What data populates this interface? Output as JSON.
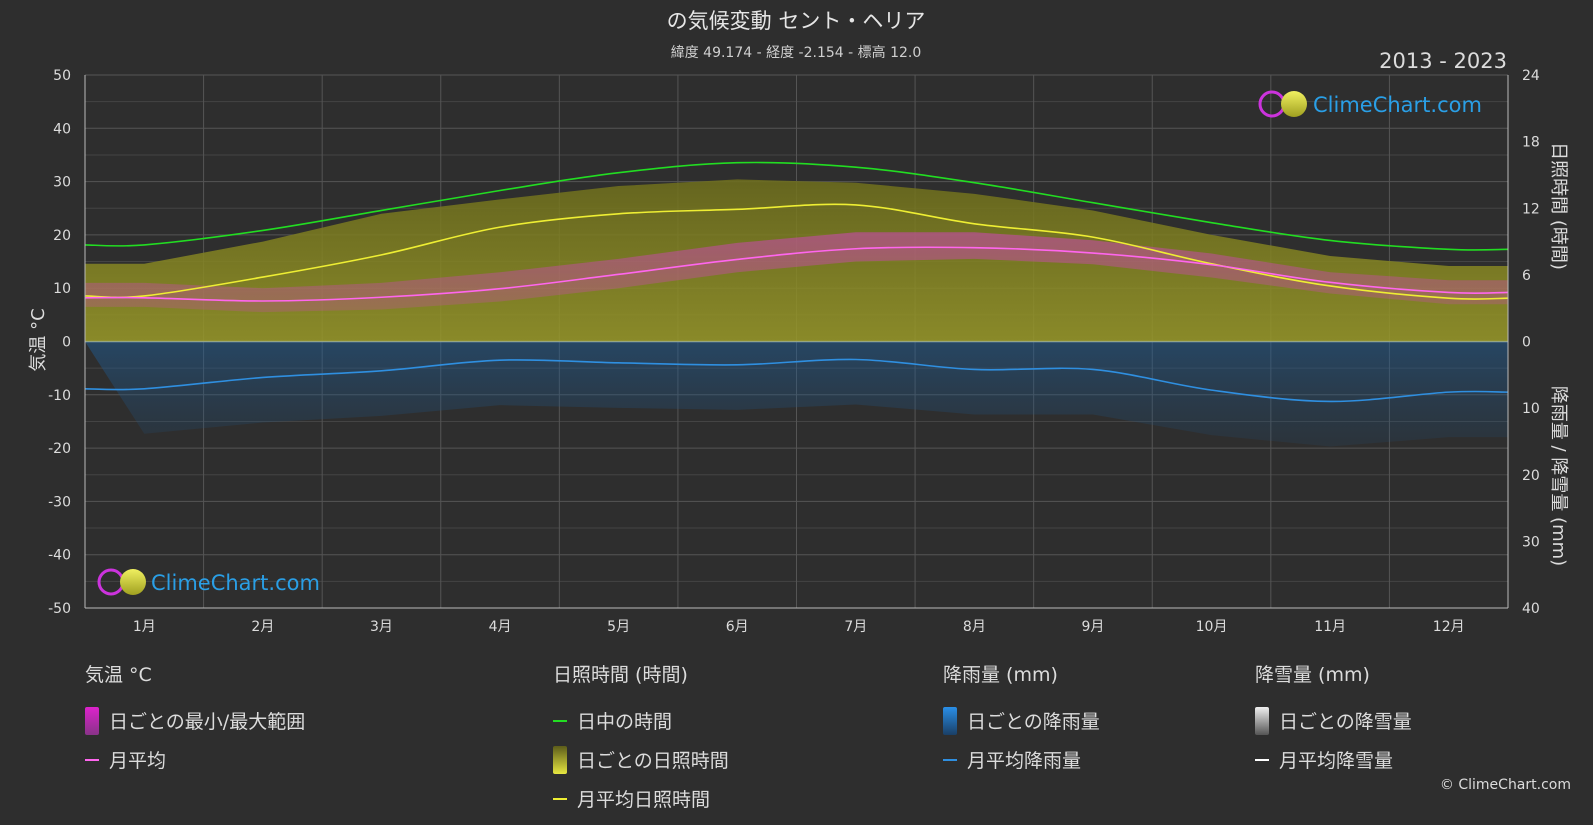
{
  "header": {
    "title": "の気候変動 セント・ヘリア",
    "subtitle": "緯度 49.174 - 経度 -2.154 - 標高 12.0",
    "year_range": "2013 - 2023"
  },
  "brand": {
    "name": "ClimeChart.com",
    "copyright": "© ClimeChart.com"
  },
  "colors": {
    "background": "#2e2e2e",
    "daylight": "#22dd22",
    "sunshine_line": "#eeee33",
    "sunshine_fill": "#8c8c1e",
    "temp_line": "#ff66ee",
    "temp_band": "#cc33aa",
    "rain_line": "#2f8fe0",
    "rain_bar": "#1f5f9a",
    "snow_bar": "#aaaaaa",
    "brand_blue": "#2a9fe6"
  },
  "chart_data": {
    "type": "line",
    "months": [
      "1月",
      "2月",
      "3月",
      "4月",
      "5月",
      "6月",
      "7月",
      "8月",
      "9月",
      "10月",
      "11月",
      "12月"
    ],
    "left_axis": {
      "label": "気温 °C",
      "ticks": [
        50,
        40,
        30,
        20,
        10,
        0,
        -10,
        -20,
        -30,
        -40,
        -50
      ],
      "ylim": [
        -50,
        50
      ]
    },
    "right_axis_top": {
      "label": "日照時間 (時間)",
      "ticks": [
        24,
        18,
        12,
        6,
        0
      ],
      "ylim": [
        0,
        24
      ]
    },
    "right_axis_bottom": {
      "label": "降雨量 / 降雪量 (mm)",
      "ticks": [
        0,
        10,
        20,
        30,
        40
      ],
      "ylim": [
        0,
        40
      ]
    },
    "series": [
      {
        "name": "日中の時間",
        "unit": "hours",
        "values": [
          8.7,
          10.0,
          11.8,
          13.6,
          15.2,
          16.1,
          15.7,
          14.3,
          12.5,
          10.7,
          9.1,
          8.3
        ]
      },
      {
        "name": "月平均日照時間",
        "unit": "hours",
        "values": [
          4.1,
          5.8,
          7.8,
          10.3,
          11.5,
          11.9,
          12.3,
          10.6,
          9.4,
          7.0,
          5.0,
          3.9
        ]
      },
      {
        "name": "月平均",
        "unit": "°C",
        "values": [
          8.2,
          7.6,
          8.3,
          9.9,
          12.6,
          15.4,
          17.4,
          17.6,
          16.6,
          14.4,
          11.1,
          9.2
        ]
      },
      {
        "name": "月平均降雨量",
        "unit": "mm",
        "values": [
          7.1,
          5.4,
          4.4,
          2.8,
          3.2,
          3.5,
          2.7,
          4.2,
          4.2,
          7.3,
          9.0,
          7.6
        ]
      },
      {
        "name": "月平均降雪量",
        "unit": "mm",
        "values": [
          0,
          0,
          0,
          0,
          0,
          0,
          0,
          0,
          0,
          0,
          0,
          0
        ]
      }
    ],
    "daily_sunshine_max": [
      7.0,
      9.0,
      11.5,
      12.8,
      14.0,
      14.6,
      14.3,
      13.3,
      11.8,
      9.6,
      7.7,
      6.8
    ],
    "temp_band_min": [
      6.5,
      5.5,
      6.0,
      7.5,
      10.0,
      13.0,
      15.0,
      15.5,
      14.5,
      12.0,
      9.0,
      7.0
    ],
    "temp_band_max": [
      11.0,
      10.0,
      11.0,
      13.0,
      15.5,
      18.5,
      20.5,
      20.5,
      19.0,
      16.5,
      13.0,
      11.5
    ],
    "grid": true
  },
  "legend": {
    "groups": [
      {
        "title": "気温 °C",
        "items": [
          {
            "label": "日ごとの最小/最大範囲",
            "kind": "bar",
            "color": "#dd22cc"
          },
          {
            "label": "月平均",
            "kind": "line",
            "color": "#ff66ee"
          }
        ]
      },
      {
        "title": "日照時間 (時間)",
        "items": [
          {
            "label": "日中の時間",
            "kind": "line",
            "color": "#22dd22"
          },
          {
            "label": "日ごとの日照時間",
            "kind": "bar",
            "color": "#c8c832"
          },
          {
            "label": "月平均日照時間",
            "kind": "line",
            "color": "#eeee33"
          }
        ]
      },
      {
        "title": "降雨量 (mm)",
        "items": [
          {
            "label": "日ごとの降雨量",
            "kind": "bar",
            "color": "#2a8fe8"
          },
          {
            "label": "月平均降雨量",
            "kind": "line",
            "color": "#2f8fe0"
          }
        ]
      },
      {
        "title": "降雪量 (mm)",
        "items": [
          {
            "label": "日ごとの降雪量",
            "kind": "bar",
            "color": "#e8e8e8"
          },
          {
            "label": "月平均降雪量",
            "kind": "line",
            "color": "#ffffff"
          }
        ]
      }
    ]
  }
}
